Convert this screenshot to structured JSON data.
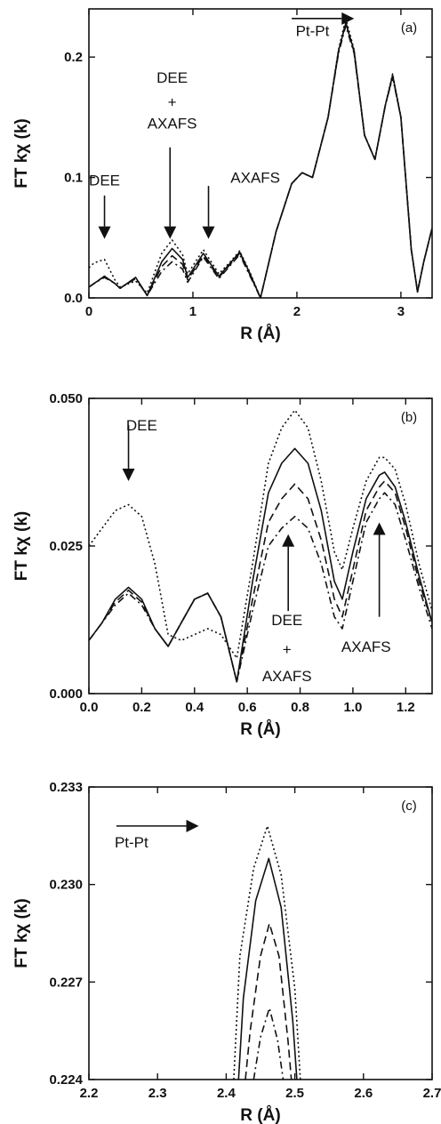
{
  "chart_data": [
    {
      "type": "line",
      "panel_label": "(a)",
      "xlabel": "R (Å)",
      "ylabel": "FT kχ (k)",
      "xlim": [
        0,
        3.3
      ],
      "ylim": [
        0,
        0.24
      ],
      "xticks": [
        0,
        1,
        2,
        3
      ],
      "xtick_labels": [
        "0",
        "1",
        "2",
        "3"
      ],
      "yticks": [
        0,
        0.1,
        0.2
      ],
      "ytick_labels": [
        "0.0",
        "0.1",
        "0.2"
      ],
      "grid": false,
      "legend": "none",
      "series": [
        {
          "style": "solid",
          "x": [
            0,
            0.05,
            0.15,
            0.25,
            0.3,
            0.45,
            0.56,
            0.7,
            0.8,
            0.9,
            0.95,
            1.1,
            1.25,
            1.35,
            1.45,
            1.55,
            1.65,
            1.8,
            1.95,
            2.05,
            2.15,
            2.3,
            2.4,
            2.47,
            2.55,
            2.65,
            2.75,
            2.85,
            2.92,
            3.0,
            3.1,
            3.16,
            3.22,
            3.3
          ],
          "y": [
            0.009,
            0.012,
            0.018,
            0.012,
            0.008,
            0.017,
            0.002,
            0.03,
            0.041,
            0.032,
            0.017,
            0.037,
            0.018,
            0.028,
            0.038,
            0.02,
            0.0,
            0.055,
            0.095,
            0.104,
            0.1,
            0.15,
            0.205,
            0.228,
            0.205,
            0.135,
            0.115,
            0.16,
            0.185,
            0.15,
            0.04,
            0.005,
            0.03,
            0.058
          ]
        },
        {
          "style": "dotted",
          "x": [
            0,
            0.05,
            0.15,
            0.25,
            0.3,
            0.45,
            0.56,
            0.7,
            0.8,
            0.9,
            0.95,
            1.1,
            1.25,
            1.35,
            1.45,
            1.55,
            1.65,
            1.8,
            1.95,
            2.05,
            2.15,
            2.3,
            2.4,
            2.47,
            2.55,
            2.65,
            2.75,
            2.85,
            2.92,
            3.0,
            3.1,
            3.16,
            3.22,
            3.3
          ],
          "y": [
            0.025,
            0.029,
            0.032,
            0.015,
            0.009,
            0.014,
            0.004,
            0.037,
            0.048,
            0.036,
            0.02,
            0.04,
            0.02,
            0.029,
            0.039,
            0.021,
            0.0,
            0.055,
            0.095,
            0.104,
            0.1,
            0.15,
            0.206,
            0.232,
            0.206,
            0.135,
            0.115,
            0.16,
            0.186,
            0.15,
            0.04,
            0.005,
            0.03,
            0.058
          ]
        },
        {
          "style": "dashed",
          "x": [
            0,
            0.05,
            0.15,
            0.25,
            0.3,
            0.45,
            0.56,
            0.7,
            0.8,
            0.9,
            0.95,
            1.1,
            1.25,
            1.35,
            1.45,
            1.55,
            1.65,
            1.8,
            1.95,
            2.05,
            2.15,
            2.3,
            2.4,
            2.47,
            2.55,
            2.65,
            2.75,
            2.85,
            2.92,
            3.0,
            3.1,
            3.16,
            3.22,
            3.3
          ],
          "y": [
            0.009,
            0.012,
            0.018,
            0.012,
            0.008,
            0.017,
            0.002,
            0.026,
            0.035,
            0.028,
            0.015,
            0.035,
            0.017,
            0.027,
            0.037,
            0.019,
            0.0,
            0.055,
            0.095,
            0.104,
            0.1,
            0.15,
            0.204,
            0.229,
            0.204,
            0.135,
            0.115,
            0.16,
            0.184,
            0.15,
            0.04,
            0.005,
            0.03,
            0.058
          ]
        },
        {
          "style": "dashdot",
          "x": [
            0,
            0.05,
            0.15,
            0.25,
            0.3,
            0.45,
            0.56,
            0.7,
            0.8,
            0.9,
            0.95,
            1.1,
            1.25,
            1.35,
            1.45,
            1.55,
            1.65,
            1.8,
            1.95,
            2.05,
            2.15,
            2.3,
            2.4,
            2.47,
            2.55,
            2.65,
            2.75,
            2.85,
            2.92,
            3.0,
            3.1,
            3.16,
            3.22,
            3.3
          ],
          "y": [
            0.009,
            0.012,
            0.017,
            0.012,
            0.008,
            0.016,
            0.002,
            0.022,
            0.03,
            0.024,
            0.013,
            0.034,
            0.016,
            0.026,
            0.036,
            0.018,
            0.0,
            0.055,
            0.095,
            0.104,
            0.1,
            0.15,
            0.203,
            0.226,
            0.203,
            0.135,
            0.115,
            0.16,
            0.183,
            0.15,
            0.04,
            0.005,
            0.03,
            0.058
          ]
        }
      ],
      "annotations": [
        {
          "text": "DEE",
          "x": 0.15,
          "y": 0.098
        },
        {
          "text": "DEE",
          "x": 0.8,
          "y": 0.183
        },
        {
          "text": "+",
          "x": 0.8,
          "y": 0.163
        },
        {
          "text": "AXAFS",
          "x": 0.8,
          "y": 0.145
        },
        {
          "text": "AXAFS",
          "x": 1.6,
          "y": 0.1
        },
        {
          "text": "Pt-Pt",
          "x": 2.15,
          "y": 0.222
        }
      ],
      "arrows": [
        {
          "direction": "down",
          "x": 0.15,
          "from": 0.085,
          "to": 0.049
        },
        {
          "direction": "down",
          "x": 0.78,
          "from": 0.125,
          "to": 0.049
        },
        {
          "direction": "down",
          "x": 1.15,
          "from": 0.093,
          "to": 0.049
        },
        {
          "direction": "right",
          "y": 0.232,
          "from": 1.95,
          "to": 2.55
        }
      ]
    },
    {
      "type": "line",
      "panel_label": "(b)",
      "xlabel": "R (Å)",
      "ylabel": "FT kχ (k)",
      "xlim": [
        0,
        1.3
      ],
      "ylim": [
        0,
        0.05
      ],
      "xticks": [
        0,
        0.2,
        0.4,
        0.6,
        0.8,
        1.0,
        1.2
      ],
      "xtick_labels": [
        "0.0",
        "0.2",
        "0.4",
        "0.6",
        "0.8",
        "1.0",
        "1.2"
      ],
      "yticks": [
        0,
        0.025,
        0.05
      ],
      "ytick_labels": [
        "0.000",
        "0.025",
        "0.050"
      ],
      "grid": false,
      "legend": "none",
      "series": [
        {
          "style": "dotted",
          "x": [
            0,
            0.05,
            0.1,
            0.15,
            0.2,
            0.25,
            0.3,
            0.35,
            0.4,
            0.45,
            0.5,
            0.56,
            0.62,
            0.68,
            0.73,
            0.78,
            0.83,
            0.88,
            0.93,
            0.96,
            1.0,
            1.05,
            1.1,
            1.12,
            1.16,
            1.2,
            1.25,
            1.3
          ],
          "y": [
            0.025,
            0.028,
            0.031,
            0.032,
            0.03,
            0.022,
            0.01,
            0.009,
            0.01,
            0.011,
            0.01,
            0.006,
            0.022,
            0.039,
            0.045,
            0.048,
            0.045,
            0.036,
            0.024,
            0.021,
            0.028,
            0.036,
            0.04,
            0.04,
            0.038,
            0.032,
            0.022,
            0.014
          ]
        },
        {
          "style": "solid",
          "x": [
            0,
            0.05,
            0.1,
            0.15,
            0.2,
            0.25,
            0.3,
            0.35,
            0.4,
            0.45,
            0.5,
            0.56,
            0.62,
            0.68,
            0.73,
            0.78,
            0.83,
            0.88,
            0.93,
            0.96,
            1.0,
            1.05,
            1.1,
            1.12,
            1.16,
            1.2,
            1.25,
            1.3
          ],
          "y": [
            0.009,
            0.012,
            0.016,
            0.018,
            0.016,
            0.011,
            0.008,
            0.012,
            0.016,
            0.017,
            0.013,
            0.002,
            0.019,
            0.034,
            0.039,
            0.0415,
            0.039,
            0.031,
            0.019,
            0.016,
            0.024,
            0.033,
            0.037,
            0.0375,
            0.035,
            0.029,
            0.02,
            0.012
          ]
        },
        {
          "style": "dashed",
          "x": [
            0,
            0.05,
            0.1,
            0.15,
            0.2,
            0.25,
            0.3,
            0.35,
            0.4,
            0.45,
            0.5,
            0.56,
            0.62,
            0.68,
            0.73,
            0.78,
            0.83,
            0.88,
            0.93,
            0.96,
            1.0,
            1.05,
            1.1,
            1.12,
            1.16,
            1.2,
            1.25,
            1.3
          ],
          "y": [
            0.009,
            0.012,
            0.0155,
            0.0175,
            0.0155,
            0.011,
            0.008,
            0.012,
            0.016,
            0.017,
            0.013,
            0.002,
            0.016,
            0.029,
            0.033,
            0.0355,
            0.033,
            0.026,
            0.016,
            0.013,
            0.021,
            0.031,
            0.035,
            0.036,
            0.034,
            0.028,
            0.019,
            0.012
          ]
        },
        {
          "style": "dashdot",
          "x": [
            0,
            0.05,
            0.1,
            0.15,
            0.2,
            0.25,
            0.3,
            0.35,
            0.4,
            0.45,
            0.5,
            0.56,
            0.62,
            0.68,
            0.73,
            0.78,
            0.83,
            0.88,
            0.93,
            0.96,
            1.0,
            1.05,
            1.1,
            1.12,
            1.16,
            1.2,
            1.25,
            1.3
          ],
          "y": [
            0.009,
            0.012,
            0.015,
            0.017,
            0.015,
            0.011,
            0.008,
            0.012,
            0.016,
            0.017,
            0.013,
            0.002,
            0.014,
            0.025,
            0.028,
            0.03,
            0.028,
            0.022,
            0.013,
            0.011,
            0.019,
            0.029,
            0.033,
            0.034,
            0.032,
            0.026,
            0.018,
            0.011
          ]
        }
      ],
      "annotations": [
        {
          "text": "DEE",
          "x": 0.2,
          "y": 0.0455
        },
        {
          "text": "DEE",
          "x": 0.75,
          "y": 0.0125
        },
        {
          "text": "+",
          "x": 0.75,
          "y": 0.0075
        },
        {
          "text": "AXAFS",
          "x": 0.75,
          "y": 0.003
        },
        {
          "text": "AXAFS",
          "x": 1.05,
          "y": 0.008
        }
      ],
      "arrows": [
        {
          "direction": "down",
          "x": 0.15,
          "from": 0.0455,
          "to": 0.036
        },
        {
          "direction": "up",
          "x": 0.755,
          "from": 0.014,
          "to": 0.027
        },
        {
          "direction": "up",
          "x": 1.1,
          "from": 0.013,
          "to": 0.029
        }
      ]
    },
    {
      "type": "line",
      "panel_label": "(c)",
      "xlabel": "R (Å)",
      "ylabel": "FT kχ (k)",
      "xlim": [
        2.2,
        2.7
      ],
      "ylim": [
        0.224,
        0.233
      ],
      "xticks": [
        2.2,
        2.3,
        2.4,
        2.5,
        2.6,
        2.7
      ],
      "xtick_labels": [
        "2.2",
        "2.3",
        "2.4",
        "2.5",
        "2.6",
        "2.7"
      ],
      "yticks": [
        0.224,
        0.227,
        0.23,
        0.233
      ],
      "ytick_labels": [
        "0.224",
        "0.227",
        "0.230",
        "0.233"
      ],
      "grid": false,
      "legend": "none",
      "series": [
        {
          "style": "dotted",
          "x": [
            2.411,
            2.42,
            2.44,
            2.46,
            2.48,
            2.5,
            2.508
          ],
          "y": [
            0.224,
            0.2278,
            0.2305,
            0.2318,
            0.2303,
            0.2268,
            0.224
          ]
        },
        {
          "style": "solid",
          "x": [
            2.418,
            2.425,
            2.443,
            2.462,
            2.48,
            2.497,
            2.503
          ],
          "y": [
            0.224,
            0.2265,
            0.2295,
            0.2308,
            0.2293,
            0.2258,
            0.224
          ]
        },
        {
          "style": "dashed",
          "x": [
            2.428,
            2.435,
            2.45,
            2.463,
            2.477,
            2.49,
            2.495
          ],
          "y": [
            0.224,
            0.2255,
            0.2278,
            0.2288,
            0.2278,
            0.2252,
            0.224
          ]
        },
        {
          "style": "dashdot",
          "x": [
            2.44,
            2.45,
            2.463,
            2.475,
            2.483
          ],
          "y": [
            0.224,
            0.2253,
            0.2262,
            0.2252,
            0.224
          ]
        }
      ],
      "annotations": [
        {
          "text": "Pt-Pt",
          "x": 2.262,
          "y": 0.2313
        }
      ],
      "arrows": [
        {
          "direction": "right",
          "y": 0.2318,
          "from": 2.24,
          "to": 2.36
        }
      ]
    }
  ]
}
